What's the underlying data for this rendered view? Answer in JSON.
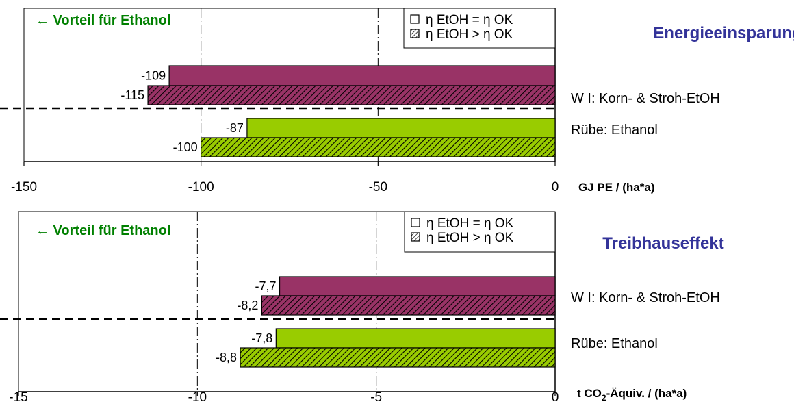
{
  "colors": {
    "wheat": "#993366",
    "beet": "#99cc00",
    "advantage_text": "#008000",
    "title_text": "#333399",
    "hatch": "#000000"
  },
  "legend": {
    "plain_label": "η EtOH = η OK",
    "hatched_label": "η EtOH > η OK"
  },
  "chart_data": [
    {
      "type": "bar",
      "orientation": "horizontal",
      "title": "Energieeinsparung",
      "annotation": "← Vorteil für Ethanol",
      "unit_label": "GJ PE / (ha*a)",
      "xlim": [
        -150,
        0
      ],
      "xticks": [
        -150,
        -100,
        -50,
        0
      ],
      "xtick_labels": [
        "-150",
        "-100",
        "-50",
        "0"
      ],
      "grid": "vertical-dashdot",
      "legend_position": "top-right",
      "categories": [
        "W I: Korn- & Stroh-EtOH",
        "Rübe: Ethanol"
      ],
      "series": [
        {
          "name": "η EtOH = η OK",
          "pattern": "solid",
          "values": [
            -109,
            -87
          ],
          "labels": [
            "-109",
            "-87"
          ]
        },
        {
          "name": "η EtOH > η OK",
          "pattern": "hatched",
          "values": [
            -115,
            -100
          ],
          "labels": [
            "-115",
            "-100"
          ]
        }
      ]
    },
    {
      "type": "bar",
      "orientation": "horizontal",
      "title": "Treibhauseffekt",
      "annotation": "← Vorteil für Ethanol",
      "unit_label_main": "t CO",
      "unit_label_sub": "2",
      "unit_label_rest": "-Äquiv. / (ha*a)",
      "xlim": [
        -15,
        0
      ],
      "xticks": [
        -15,
        -10,
        -5,
        0
      ],
      "xtick_labels": [
        "-15",
        "-10",
        "-5",
        "0"
      ],
      "grid": "vertical-dashdot",
      "legend_position": "top-right",
      "categories": [
        "W I: Korn- & Stroh-EtOH",
        "Rübe: Ethanol"
      ],
      "series": [
        {
          "name": "η EtOH = η OK",
          "pattern": "solid",
          "values": [
            -7.7,
            -7.8
          ],
          "labels": [
            "-7,7",
            "-7,8"
          ]
        },
        {
          "name": "η EtOH > η OK",
          "pattern": "hatched",
          "values": [
            -8.2,
            -8.8
          ],
          "labels": [
            "-8,2",
            "-8,8"
          ]
        }
      ]
    }
  ]
}
